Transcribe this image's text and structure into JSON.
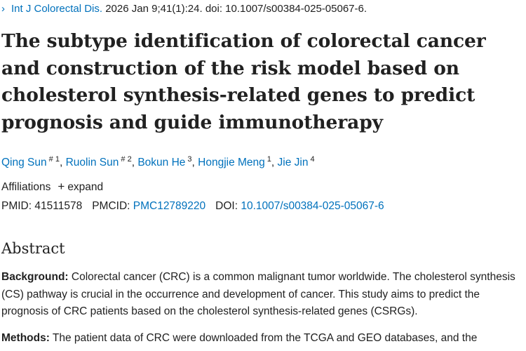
{
  "citation": {
    "chevron": "›",
    "journal": "Int J Colorectal Dis.",
    "details": "2026 Jan 9;41(1):24. doi: 10.1007/s00384-025-05067-6."
  },
  "article": {
    "title": "The subtype identification of colorectal cancer and construction of the risk model based on cholesterol synthesis-related genes to predict prognosis and guide immunotherapy"
  },
  "authors": [
    {
      "name": "Qing Sun",
      "sup": "# 1"
    },
    {
      "name": "Ruolin Sun",
      "sup": "# 2"
    },
    {
      "name": "Bokun He",
      "sup": "3"
    },
    {
      "name": "Hongjie Meng",
      "sup": "1"
    },
    {
      "name": "Jie Jin",
      "sup": "4"
    }
  ],
  "affiliations": {
    "label": "Affiliations",
    "expand_label": "expand"
  },
  "identifiers": {
    "pmid_label": "PMID:",
    "pmid": "41511578",
    "pmcid_label": "PMCID:",
    "pmcid": "PMC12789220",
    "doi_label": "DOI:",
    "doi": "10.1007/s00384-025-05067-6"
  },
  "abstract": {
    "heading": "Abstract",
    "background_label": "Background:",
    "background_text": " Colorectal cancer (CRC) is a common malignant tumor worldwide. The cholesterol synthesis (CS) pathway is crucial in the occurrence and development of cancer. This study aims to predict the prognosis of CRC patients based on the cholesterol synthesis-related genes (CSRGs).",
    "methods_label": "Methods:",
    "methods_text": " The patient data of CRC were downloaded from the TCGA and GEO databases, and the"
  },
  "colors": {
    "link": "#0071bc",
    "text": "#212121"
  }
}
